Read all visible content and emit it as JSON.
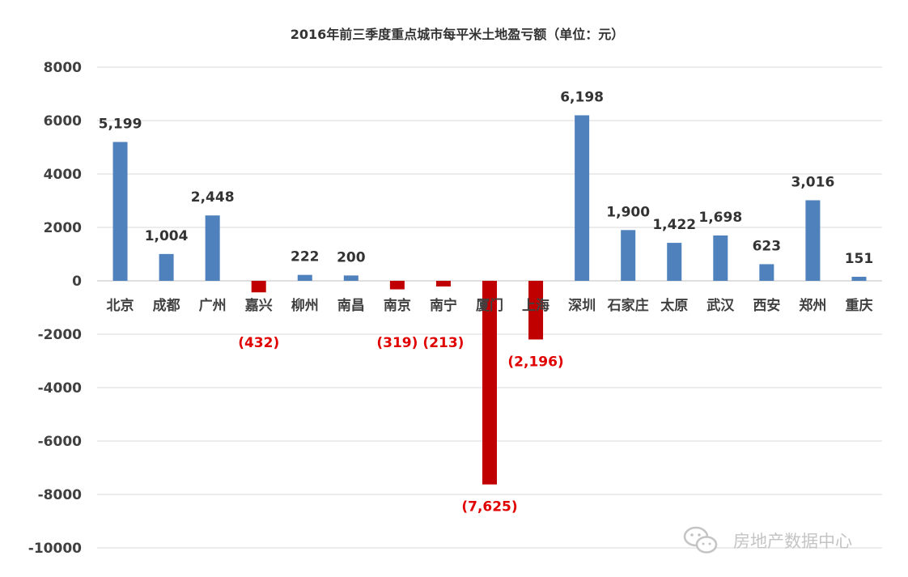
{
  "chart_data": {
    "type": "bar",
    "title": "2016年前三季度重点城市每平米土地盈亏额（单位：元）",
    "categories": [
      "北京",
      "成都",
      "广州",
      "嘉兴",
      "柳州",
      "南昌",
      "南京",
      "南宁",
      "厦门",
      "上海",
      "深圳",
      "石家庄",
      "太原",
      "武汉",
      "西安",
      "郑州",
      "重庆"
    ],
    "values": [
      5199,
      1004,
      2448,
      -432,
      222,
      200,
      -319,
      -213,
      -7625,
      -2196,
      6198,
      1900,
      1422,
      1698,
      623,
      3016,
      151
    ],
    "data_labels": [
      "5,199",
      "1,004",
      "2,448",
      "(432)",
      "222",
      "200",
      "(319)",
      "(213)",
      "(7,625)",
      "(2,196)",
      "6,198",
      "1,900",
      "1,422",
      "1,698",
      "623",
      "3,016",
      "151"
    ],
    "ylim": [
      -10000,
      8000
    ],
    "yticks": [
      8000,
      6000,
      4000,
      2000,
      0,
      -2000,
      -4000,
      -6000,
      -8000,
      -10000
    ],
    "xlabel": "",
    "ylabel": "",
    "grid": true,
    "legend": "none",
    "colors": {
      "positive": "#4f81bd",
      "negative": "#c00000",
      "negative_label": "#e00000"
    }
  },
  "watermark": {
    "text": "房地产数据中心",
    "icon": "wechat-icon"
  }
}
